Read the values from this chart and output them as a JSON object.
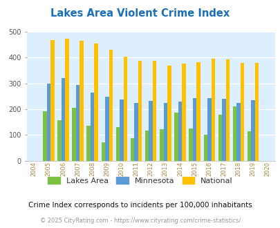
{
  "title": "Lakes Area Violent Crime Index",
  "years": [
    2004,
    2005,
    2006,
    2007,
    2008,
    2009,
    2010,
    2011,
    2012,
    2013,
    2014,
    2015,
    2016,
    2017,
    2018,
    2019,
    2020
  ],
  "lakes_area": [
    null,
    193,
    157,
    205,
    135,
    72,
    130,
    87,
    118,
    123,
    188,
    124,
    100,
    180,
    210,
    115,
    null
  ],
  "minnesota": [
    null,
    299,
    320,
    294,
    265,
    248,
    237,
    223,
    233,
    224,
    231,
    244,
    244,
    240,
    224,
    236,
    null
  ],
  "national": [
    null,
    469,
    474,
    467,
    455,
    432,
    405,
    387,
    387,
    368,
    376,
    383,
    397,
    394,
    380,
    379,
    null
  ],
  "bar_width": 0.26,
  "lakes_color": "#7dc142",
  "minnesota_color": "#5b9bd5",
  "national_color": "#ffc000",
  "bg_color": "#ddeeff",
  "title_color": "#1a6fba",
  "ylabel_max": 500,
  "subtitle": "Crime Index corresponds to incidents per 100,000 inhabitants",
  "footer": "© 2025 CityRating.com - https://www.cityrating.com/crime-statistics/",
  "legend_labels": [
    "Lakes Area",
    "Minnesota",
    "National"
  ]
}
